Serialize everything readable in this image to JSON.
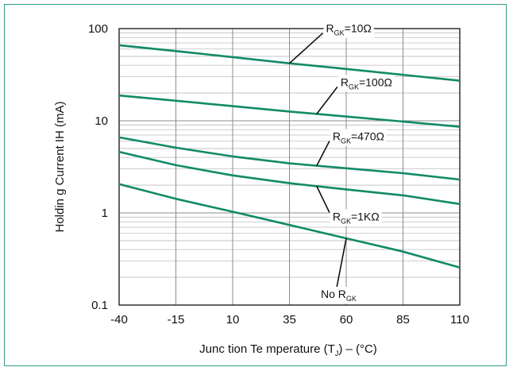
{
  "chart_data": {
    "type": "line",
    "title": "",
    "xlabel_pre": "Junc tion Te mperature (T",
    "xlabel_sub": "J",
    "xlabel_post": ") – (°C)",
    "ylabel": "Holdin g Current IH (mA)",
    "y_scale": "log",
    "xlim": [
      -40,
      110
    ],
    "ylim": [
      0.1,
      100
    ],
    "x_ticks": [
      -40,
      -15,
      10,
      35,
      60,
      85,
      110
    ],
    "x_tick_labels": [
      "-40",
      "-15",
      "10",
      "35",
      "60",
      "85",
      "110"
    ],
    "y_ticks": [
      0.1,
      1,
      10,
      100
    ],
    "y_tick_labels": [
      "0.1",
      "1",
      "10",
      "100"
    ],
    "grid": true,
    "colors": {
      "line": "#128a68",
      "grid": "#bdbdbd",
      "frame": "#2e9e86"
    },
    "series": [
      {
        "name": "RGK=10Ω",
        "x": [
          -40,
          -15,
          10,
          35,
          60,
          85,
          110
        ],
        "y": [
          66,
          57,
          49,
          42,
          36.5,
          31.5,
          27.2
        ]
      },
      {
        "name": "RGK=100Ω",
        "x": [
          -40,
          -15,
          10,
          35,
          60,
          85,
          110
        ],
        "y": [
          18.8,
          16.5,
          14.4,
          12.6,
          11.1,
          9.8,
          8.6
        ]
      },
      {
        "name": "RGK=470Ω",
        "x": [
          -40,
          -15,
          10,
          35,
          60,
          85,
          110
        ],
        "y": [
          6.6,
          5.1,
          4.1,
          3.45,
          3.05,
          2.7,
          2.3
        ]
      },
      {
        "name": "RGK=1KΩ",
        "x": [
          -40,
          -15,
          10,
          35,
          60,
          85,
          110
        ],
        "y": [
          4.6,
          3.3,
          2.55,
          2.1,
          1.8,
          1.55,
          1.25
        ]
      },
      {
        "name": "No RGK",
        "x": [
          -40,
          -15,
          10,
          35,
          60,
          85,
          110
        ],
        "y": [
          2.05,
          1.42,
          1.03,
          0.74,
          0.53,
          0.38,
          0.255
        ]
      }
    ],
    "annotations": [
      {
        "pre": "R",
        "sub": "GK",
        "post": "=10Ω",
        "series": 0,
        "at_x": 35
      },
      {
        "pre": "R",
        "sub": "GK",
        "post": "=100Ω",
        "series": 1,
        "at_x": 47
      },
      {
        "pre": "R",
        "sub": "GK",
        "post": "=470Ω",
        "series": 2,
        "at_x": 47
      },
      {
        "pre": "R",
        "sub": "GK",
        "post": "=1KΩ",
        "series": 3,
        "at_x": 47
      },
      {
        "pre": "No R",
        "sub": "GK",
        "post": "",
        "series": 4,
        "at_x": 60
      }
    ]
  }
}
